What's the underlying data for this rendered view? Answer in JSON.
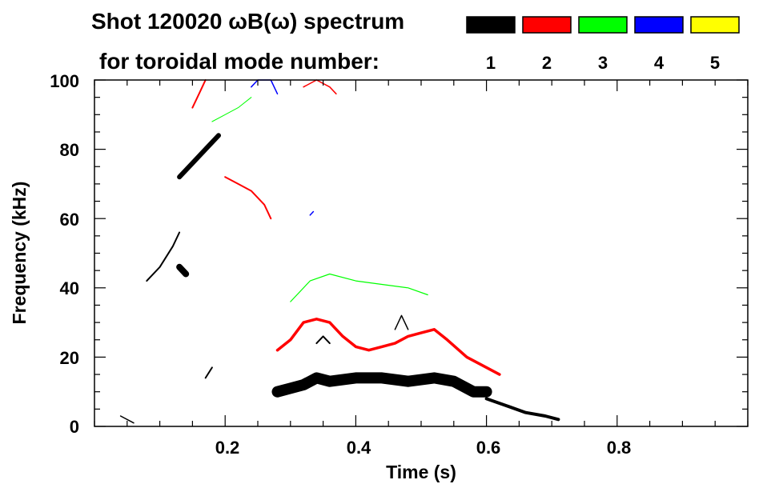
{
  "chart_data": {
    "type": "spectrogram",
    "title_line1": "Shot 120020 ωB(ω) spectrum",
    "title_line2": "for toroidal mode number:",
    "xlabel": "Time (s)",
    "ylabel": "Frequency (kHz)",
    "xlim": [
      0.0,
      1.0
    ],
    "ylim": [
      0,
      100
    ],
    "x_ticks": [
      0.2,
      0.4,
      0.6,
      0.8
    ],
    "x_tick_labels": [
      "0.2",
      "0.4",
      "0.6",
      "0.8"
    ],
    "y_ticks": [
      0,
      20,
      40,
      60,
      80,
      100
    ],
    "y_tick_labels": [
      "0",
      "20",
      "40",
      "60",
      "80",
      "100"
    ],
    "legend": [
      {
        "mode": "1",
        "color": "#000000"
      },
      {
        "mode": "2",
        "color": "#ff0000"
      },
      {
        "mode": "3",
        "color": "#00ff00"
      },
      {
        "mode": "4",
        "color": "#0000ff"
      },
      {
        "mode": "5",
        "color": "#ffff00"
      }
    ],
    "series": [
      {
        "mode": "1",
        "color": "#000000",
        "traces": [
          {
            "t": [
              0.08,
              0.1,
              0.12,
              0.13
            ],
            "f": [
              42,
              46,
              52,
              56
            ],
            "w": 2.0
          },
          {
            "t": [
              0.13,
              0.14
            ],
            "f": [
              46,
              44
            ],
            "w": 8.0
          },
          {
            "t": [
              0.13,
              0.15,
              0.17,
              0.19
            ],
            "f": [
              72,
              76,
              80,
              84
            ],
            "w": 6.0
          },
          {
            "t": [
              0.17,
              0.18
            ],
            "f": [
              14,
              17
            ],
            "w": 2.0
          },
          {
            "t": [
              0.04,
              0.06
            ],
            "f": [
              3,
              1
            ],
            "w": 1.5
          },
          {
            "t": [
              0.28,
              0.3,
              0.32,
              0.34,
              0.36,
              0.4,
              0.44,
              0.48,
              0.52,
              0.55,
              0.58,
              0.6
            ],
            "f": [
              10,
              11,
              12,
              14,
              13,
              14,
              14,
              13,
              14,
              13,
              10,
              10
            ],
            "w": 14.0
          },
          {
            "t": [
              0.6,
              0.63,
              0.66,
              0.69,
              0.71
            ],
            "f": [
              8,
              6,
              4,
              3,
              2
            ],
            "w": 4.0
          },
          {
            "t": [
              0.34,
              0.35,
              0.36
            ],
            "f": [
              24,
              26,
              24
            ],
            "w": 2.0
          },
          {
            "t": [
              0.46,
              0.47,
              0.48
            ],
            "f": [
              28,
              32,
              28
            ],
            "w": 1.5
          }
        ]
      },
      {
        "mode": "2",
        "color": "#ff0000",
        "traces": [
          {
            "t": [
              0.15,
              0.16,
              0.17
            ],
            "f": [
              92,
              96,
              100
            ],
            "w": 2.0
          },
          {
            "t": [
              0.2,
              0.22,
              0.24,
              0.26,
              0.27
            ],
            "f": [
              72,
              70,
              68,
              64,
              60
            ],
            "w": 2.0
          },
          {
            "t": [
              0.28,
              0.3,
              0.32,
              0.34,
              0.36,
              0.38,
              0.4,
              0.42,
              0.44,
              0.46,
              0.48,
              0.5,
              0.52,
              0.54,
              0.57,
              0.59,
              0.62
            ],
            "f": [
              22,
              25,
              30,
              31,
              30,
              26,
              23,
              22,
              23,
              24,
              26,
              27,
              28,
              25,
              20,
              18,
              15
            ],
            "w": 3.5
          },
          {
            "t": [
              0.32,
              0.34,
              0.36,
              0.37
            ],
            "f": [
              98,
              100,
              98,
              96
            ],
            "w": 1.5
          }
        ]
      },
      {
        "mode": "3",
        "color": "#00ff00",
        "traces": [
          {
            "t": [
              0.18,
              0.2,
              0.22,
              0.24
            ],
            "f": [
              88,
              90,
              92,
              95
            ],
            "w": 1.0
          },
          {
            "t": [
              0.3,
              0.33,
              0.36,
              0.4,
              0.44,
              0.48,
              0.51
            ],
            "f": [
              36,
              42,
              44,
              42,
              41,
              40,
              38
            ],
            "w": 1.2
          }
        ]
      },
      {
        "mode": "4",
        "color": "#0000ff",
        "traces": [
          {
            "t": [
              0.24,
              0.25,
              0.27,
              0.28
            ],
            "f": [
              98,
              100,
              100,
              96
            ],
            "w": 1.5
          },
          {
            "t": [
              0.33,
              0.335
            ],
            "f": [
              61,
              62
            ],
            "w": 1.5
          }
        ]
      },
      {
        "mode": "5",
        "color": "#ffff00",
        "traces": []
      }
    ]
  }
}
